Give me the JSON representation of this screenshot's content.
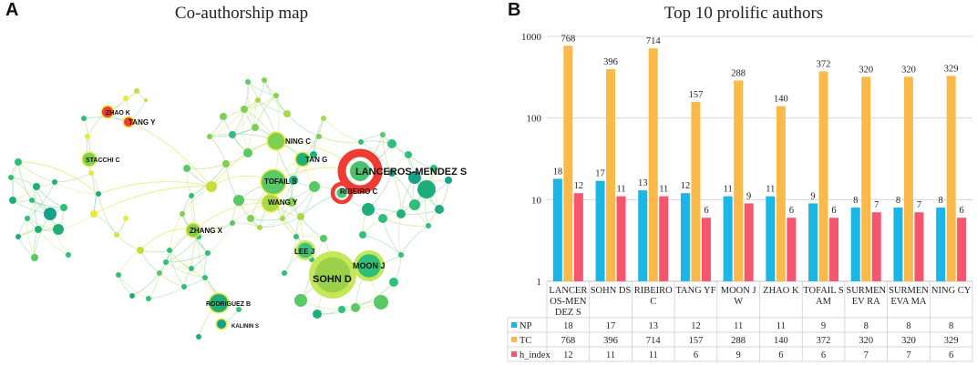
{
  "panels": {
    "a": {
      "letter": "A",
      "title": "Co-authorship map"
    },
    "b": {
      "letter": "B",
      "title": "Top 10 prolific authors"
    }
  },
  "network": {
    "labeled_nodes": [
      {
        "id": "lanceros",
        "label": "LANCEROS-MENDEZ S",
        "color": "#ef3b32"
      },
      {
        "id": "sohn",
        "label": "SOHN D",
        "color": "#9ad04a"
      },
      {
        "id": "moon",
        "label": "MOON J",
        "color": "#2fbf7a"
      },
      {
        "id": "lee",
        "label": "LEE J",
        "color": "#3cc27a"
      },
      {
        "id": "ribeiro",
        "label": "RIBEIRO C",
        "color": "#ef3b32"
      },
      {
        "id": "tofail",
        "label": "TOFAIL S",
        "color": "#5ac865"
      },
      {
        "id": "tang_g",
        "label": "TAN G",
        "color": "#22b07a"
      },
      {
        "id": "ning",
        "label": "NING C",
        "color": "#7fcf52"
      },
      {
        "id": "wang",
        "label": "WANG Y",
        "color": "#a8d84a"
      },
      {
        "id": "zhang",
        "label": "ZHANG X",
        "color": "#8ccc4e"
      },
      {
        "id": "stacchi",
        "label": "STACCHI C",
        "color": "#7fcf52"
      },
      {
        "id": "zhao",
        "label": "ZHAO K",
        "color": "#ef3b32"
      },
      {
        "id": "tang_y",
        "label": "TANG Y",
        "color": "#ef3b32"
      },
      {
        "id": "rodriguez",
        "label": "RODRIGUEZ B",
        "color": "#1fae7a"
      },
      {
        "id": "kalinin",
        "label": "KALININ S",
        "color": "#17a08a"
      }
    ]
  },
  "chart_data": {
    "type": "bar",
    "title": "Top 10 prolific authors",
    "yscale": "log",
    "ylim": [
      1,
      1000
    ],
    "yticks": [
      "1",
      "10",
      "100",
      "1000"
    ],
    "categories": [
      "LANCEROS-MENDEZ S",
      "SOHN DS",
      "RIBEIRO C",
      "TANG YF",
      "MOON JW",
      "ZHAO K",
      "TOFAIL SAM",
      "SURMENEV RA",
      "SURMENEVA MA",
      "NING CY"
    ],
    "category_lines": [
      [
        "LANCER",
        "OS-MEN",
        "DEZ S"
      ],
      [
        "SOHN DS"
      ],
      [
        "RIBEIRO",
        "C"
      ],
      [
        "TANG YF"
      ],
      [
        "MOON J",
        "W"
      ],
      [
        "ZHAO K"
      ],
      [
        "TOFAIL S",
        "AM"
      ],
      [
        "SURMEN",
        "EV RA"
      ],
      [
        "SURMEN",
        "EVA MA"
      ],
      [
        "NING CY"
      ]
    ],
    "series": [
      {
        "name": "NP",
        "color": "#1cb6e6",
        "values": [
          18,
          17,
          13,
          12,
          11,
          11,
          9,
          8,
          8,
          8
        ]
      },
      {
        "name": "TC",
        "color": "#fbb94a",
        "values": [
          768,
          396,
          714,
          157,
          288,
          140,
          372,
          320,
          320,
          329
        ]
      },
      {
        "name": "h_index",
        "color": "#f5566e",
        "values": [
          12,
          11,
          11,
          6,
          9,
          6,
          6,
          7,
          7,
          6
        ]
      }
    ]
  }
}
